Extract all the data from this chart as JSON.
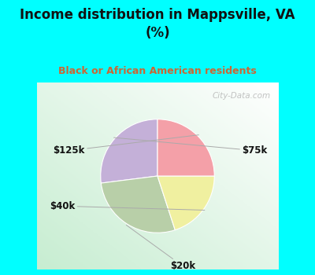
{
  "title": "Income distribution in Mappsville, VA\n(%)",
  "subtitle": "Black or African American residents",
  "title_color": "#111111",
  "subtitle_color": "#cc6633",
  "background_color": "#00FFFF",
  "chart_bg_color": "#e8f5ee",
  "labels": [
    "$75k",
    "$20k",
    "$40k",
    "$125k"
  ],
  "values": [
    27,
    28,
    20,
    25
  ],
  "colors": [
    "#c4b0d8",
    "#b8cfa8",
    "#f0f0a0",
    "#f4a0a8"
  ],
  "start_angle": 90,
  "label_positions": [
    [
      1.45,
      0.38,
      "$75k"
    ],
    [
      0.38,
      -1.35,
      "$20k"
    ],
    [
      -1.42,
      -0.45,
      "$40k"
    ],
    [
      -1.32,
      0.38,
      "$125k"
    ]
  ],
  "watermark": "City-Data.com",
  "figsize": [
    4.0,
    3.5
  ],
  "dpi": 100
}
